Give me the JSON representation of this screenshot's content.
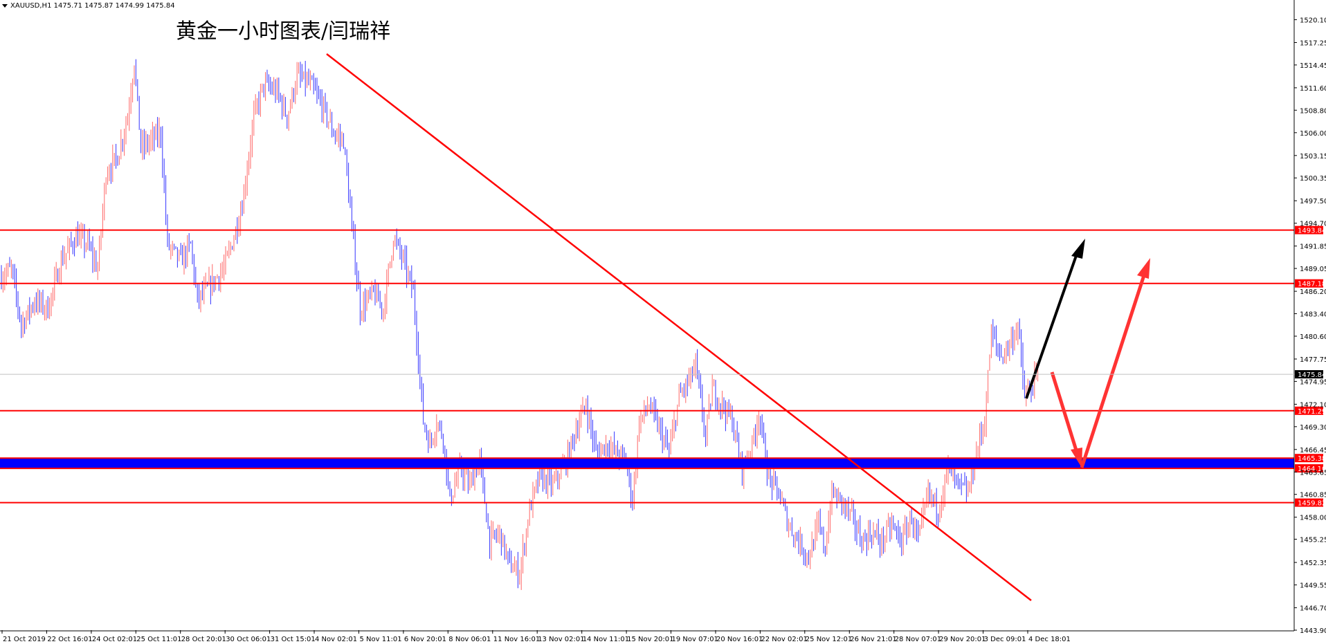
{
  "chart_data": {
    "type": "candlestick",
    "symbol_info": "XAUUSD,H1  1475.71 1475.87 1474.99 1475.84",
    "annotation": "黄金一小时图表/闫瑞祥",
    "ylim": [
      1443.9,
      1521.35
    ],
    "y_ticks": [
      "1520.10",
      "1517.25",
      "1514.45",
      "1511.60",
      "1508.80",
      "1506.00",
      "1503.15",
      "1500.35",
      "1497.50",
      "1494.70",
      "1491.85",
      "1489.05",
      "1486.20",
      "1483.40",
      "1480.60",
      "1477.75",
      "1474.95",
      "1472.10",
      "1469.30",
      "1466.45",
      "1463.65",
      "1460.85",
      "1458.00",
      "1455.25",
      "1452.35",
      "1449.55",
      "1446.70",
      "1443.90"
    ],
    "x_labels": [
      "21 Oct 2019",
      "22 Oct 16:01",
      "24 Oct 02:01",
      "25 Oct 11:01",
      "28 Oct 20:01",
      "30 Oct 06:01",
      "31 Oct 15:01",
      "4 Nov 02:01",
      "5 Nov 11:01",
      "6 Nov 20:01",
      "8 Nov 06:01",
      "11 Nov 16:01",
      "13 Nov 02:01",
      "14 Nov 11:01",
      "15 Nov 20:01",
      "19 Nov 07:01",
      "20 Nov 16:01",
      "22 Nov 02:01",
      "25 Nov 12:01",
      "26 Nov 21:01",
      "28 Nov 07:01",
      "29 Nov 20:01",
      "3 Dec 09:01",
      "4 Dec 18:01"
    ],
    "current_price": "1475.84",
    "levels": [
      {
        "price": 1493.84,
        "label": "1493.84",
        "color": "#ff0000"
      },
      {
        "price": 1487.18,
        "label": "1487.18",
        "color": "#ff0000"
      },
      {
        "price": 1471.29,
        "label": "1471.29",
        "color": "#ff0000"
      },
      {
        "price": 1465.38,
        "label": "1465.38",
        "color": "#ff0000"
      },
      {
        "price": 1464.1,
        "label": "1464.10",
        "color": "#ff0000"
      },
      {
        "price": 1459.82,
        "label": "1459.82",
        "color": "#ff0000"
      }
    ],
    "support_zone": {
      "from": 1464.1,
      "to": 1465.38,
      "color": "#0000ff"
    },
    "anchors": [
      {
        "t": 0,
        "p": 1488
      },
      {
        "t": 6,
        "p": 1489
      },
      {
        "t": 12,
        "p": 1482
      },
      {
        "t": 20,
        "p": 1485
      },
      {
        "t": 28,
        "p": 1484
      },
      {
        "t": 36,
        "p": 1490
      },
      {
        "t": 45,
        "p": 1493
      },
      {
        "t": 52,
        "p": 1492
      },
      {
        "t": 58,
        "p": 1489
      },
      {
        "t": 63,
        "p": 1501
      },
      {
        "t": 70,
        "p": 1503
      },
      {
        "t": 76,
        "p": 1508
      },
      {
        "t": 80,
        "p": 1515
      },
      {
        "t": 84,
        "p": 1504
      },
      {
        "t": 90,
        "p": 1505
      },
      {
        "t": 96,
        "p": 1506
      },
      {
        "t": 100,
        "p": 1492
      },
      {
        "t": 108,
        "p": 1490
      },
      {
        "t": 114,
        "p": 1492
      },
      {
        "t": 118,
        "p": 1485
      },
      {
        "t": 126,
        "p": 1487
      },
      {
        "t": 134,
        "p": 1489
      },
      {
        "t": 140,
        "p": 1493
      },
      {
        "t": 145,
        "p": 1497
      },
      {
        "t": 152,
        "p": 1508
      },
      {
        "t": 158,
        "p": 1512
      },
      {
        "t": 166,
        "p": 1511
      },
      {
        "t": 172,
        "p": 1508
      },
      {
        "t": 178,
        "p": 1513
      },
      {
        "t": 186,
        "p": 1512
      },
      {
        "t": 194,
        "p": 1509
      },
      {
        "t": 200,
        "p": 1506
      },
      {
        "t": 206,
        "p": 1505
      },
      {
        "t": 212,
        "p": 1492
      },
      {
        "t": 216,
        "p": 1484
      },
      {
        "t": 224,
        "p": 1486
      },
      {
        "t": 230,
        "p": 1484
      },
      {
        "t": 236,
        "p": 1493
      },
      {
        "t": 242,
        "p": 1490
      },
      {
        "t": 248,
        "p": 1486
      },
      {
        "t": 254,
        "p": 1470
      },
      {
        "t": 258,
        "p": 1467
      },
      {
        "t": 262,
        "p": 1470
      },
      {
        "t": 266,
        "p": 1468
      },
      {
        "t": 270,
        "p": 1460
      },
      {
        "t": 276,
        "p": 1464
      },
      {
        "t": 282,
        "p": 1462
      },
      {
        "t": 288,
        "p": 1465
      },
      {
        "t": 294,
        "p": 1455
      },
      {
        "t": 300,
        "p": 1456
      },
      {
        "t": 306,
        "p": 1452
      },
      {
        "t": 312,
        "p": 1451
      },
      {
        "t": 318,
        "p": 1459
      },
      {
        "t": 324,
        "p": 1463
      },
      {
        "t": 332,
        "p": 1462
      },
      {
        "t": 340,
        "p": 1465
      },
      {
        "t": 346,
        "p": 1469
      },
      {
        "t": 352,
        "p": 1472
      },
      {
        "t": 358,
        "p": 1466
      },
      {
        "t": 364,
        "p": 1467
      },
      {
        "t": 370,
        "p": 1466
      },
      {
        "t": 376,
        "p": 1465
      },
      {
        "t": 380,
        "p": 1460
      },
      {
        "t": 384,
        "p": 1470
      },
      {
        "t": 390,
        "p": 1472
      },
      {
        "t": 396,
        "p": 1469
      },
      {
        "t": 402,
        "p": 1466
      },
      {
        "t": 408,
        "p": 1473
      },
      {
        "t": 414,
        "p": 1475
      },
      {
        "t": 418,
        "p": 1477
      },
      {
        "t": 424,
        "p": 1468
      },
      {
        "t": 428,
        "p": 1474
      },
      {
        "t": 434,
        "p": 1472
      },
      {
        "t": 440,
        "p": 1470
      },
      {
        "t": 446,
        "p": 1464
      },
      {
        "t": 452,
        "p": 1467
      },
      {
        "t": 456,
        "p": 1471
      },
      {
        "t": 462,
        "p": 1463
      },
      {
        "t": 468,
        "p": 1461
      },
      {
        "t": 474,
        "p": 1457
      },
      {
        "t": 480,
        "p": 1455
      },
      {
        "t": 486,
        "p": 1453
      },
      {
        "t": 492,
        "p": 1457
      },
      {
        "t": 496,
        "p": 1454
      },
      {
        "t": 500,
        "p": 1461
      },
      {
        "t": 506,
        "p": 1460
      },
      {
        "t": 512,
        "p": 1458
      },
      {
        "t": 518,
        "p": 1455
      },
      {
        "t": 524,
        "p": 1456
      },
      {
        "t": 530,
        "p": 1455
      },
      {
        "t": 536,
        "p": 1457
      },
      {
        "t": 542,
        "p": 1455
      },
      {
        "t": 548,
        "p": 1458
      },
      {
        "t": 552,
        "p": 1455
      },
      {
        "t": 558,
        "p": 1461
      },
      {
        "t": 564,
        "p": 1459
      },
      {
        "t": 570,
        "p": 1464
      },
      {
        "t": 576,
        "p": 1462
      },
      {
        "t": 582,
        "p": 1461
      },
      {
        "t": 588,
        "p": 1467
      },
      {
        "t": 592,
        "p": 1470
      },
      {
        "t": 596,
        "p": 1481
      },
      {
        "t": 602,
        "p": 1478
      },
      {
        "t": 608,
        "p": 1480
      },
      {
        "t": 612,
        "p": 1482
      },
      {
        "t": 616,
        "p": 1473
      },
      {
        "t": 620,
        "p": 1474
      },
      {
        "t": 624,
        "p": 1475.84
      }
    ],
    "n_bars": 625
  }
}
